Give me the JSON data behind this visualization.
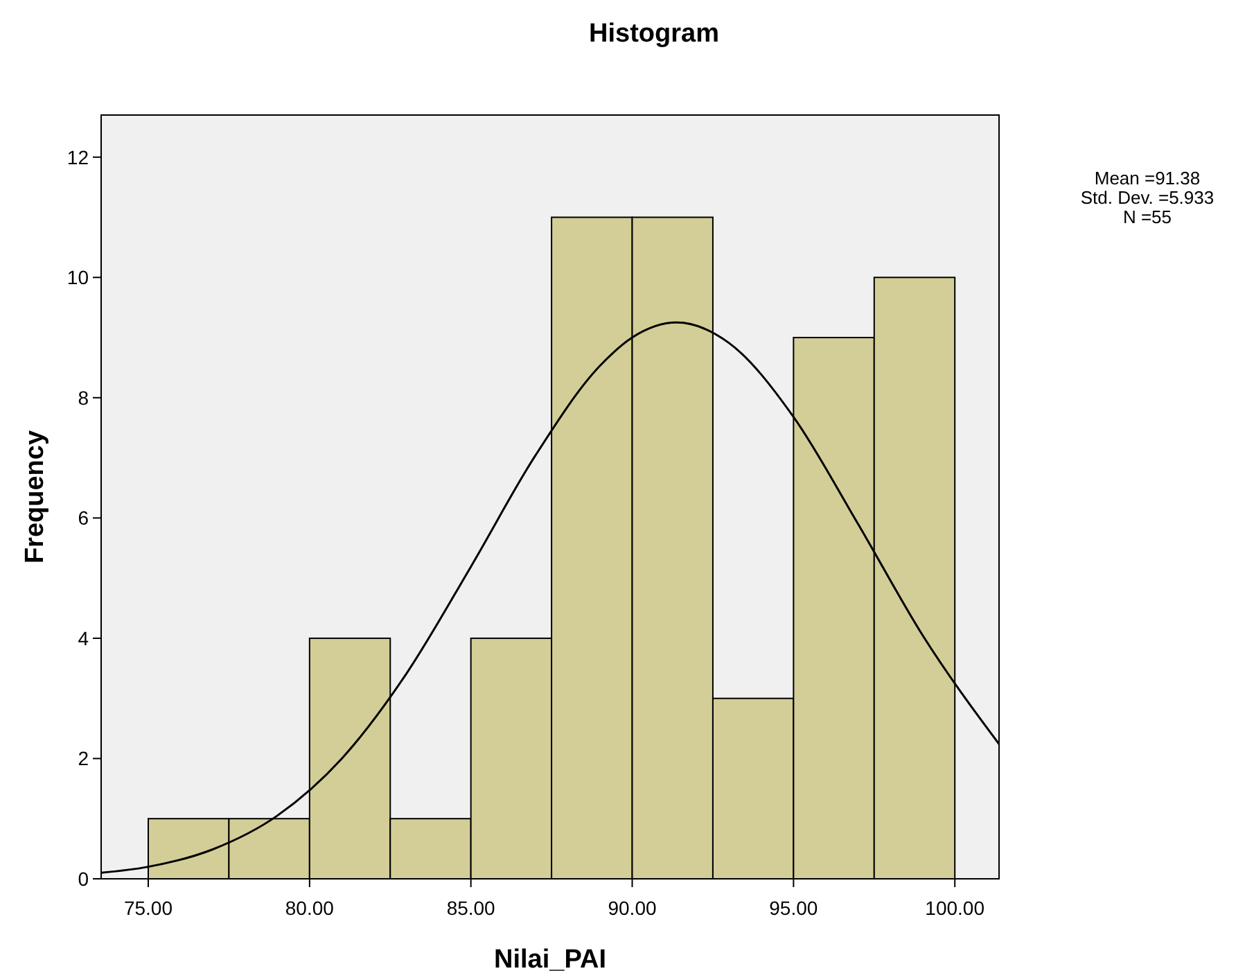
{
  "chart_data": {
    "type": "histogram",
    "title": "Histogram",
    "xlabel": "Nilai_PAI",
    "ylabel": "Frequency",
    "bins": [
      75,
      77.5,
      80,
      82.5,
      85,
      87.5,
      90,
      92.5,
      95,
      97.5,
      100
    ],
    "series": [
      {
        "color": "#d3ce97",
        "values": [
          1,
          1,
          4,
          1,
          4,
          11,
          11,
          3,
          9,
          10
        ]
      },
      {
        "type": "line",
        "color": "#000000",
        "x": [
          73.54,
          75,
          77,
          79,
          81,
          83,
          85,
          87,
          89,
          90,
          91.38,
          93,
          95,
          97,
          99,
          101.37
        ],
        "values": [
          0.1,
          0.2,
          0.49,
          1.05,
          2.0,
          3.41,
          5.19,
          7.04,
          8.53,
          9.0,
          9.25,
          8.91,
          7.68,
          5.9,
          4.05,
          2.24
        ]
      }
    ],
    "xlim": [
      73.54,
      101.37
    ],
    "ylim": [
      0,
      12.7
    ],
    "xticks": [
      {
        "value": 75,
        "label": "75.00"
      },
      {
        "value": 80,
        "label": "80.00"
      },
      {
        "value": 85,
        "label": "85.00"
      },
      {
        "value": 90,
        "label": "90.00"
      },
      {
        "value": 95,
        "label": "95.00"
      },
      {
        "value": 100,
        "label": "100.00"
      }
    ],
    "yticks": [
      0,
      2,
      4,
      6,
      8,
      10,
      12
    ],
    "grid": false,
    "annotations": [
      "Mean =91.38",
      "Std. Dev. =5.933",
      "N =55"
    ]
  }
}
